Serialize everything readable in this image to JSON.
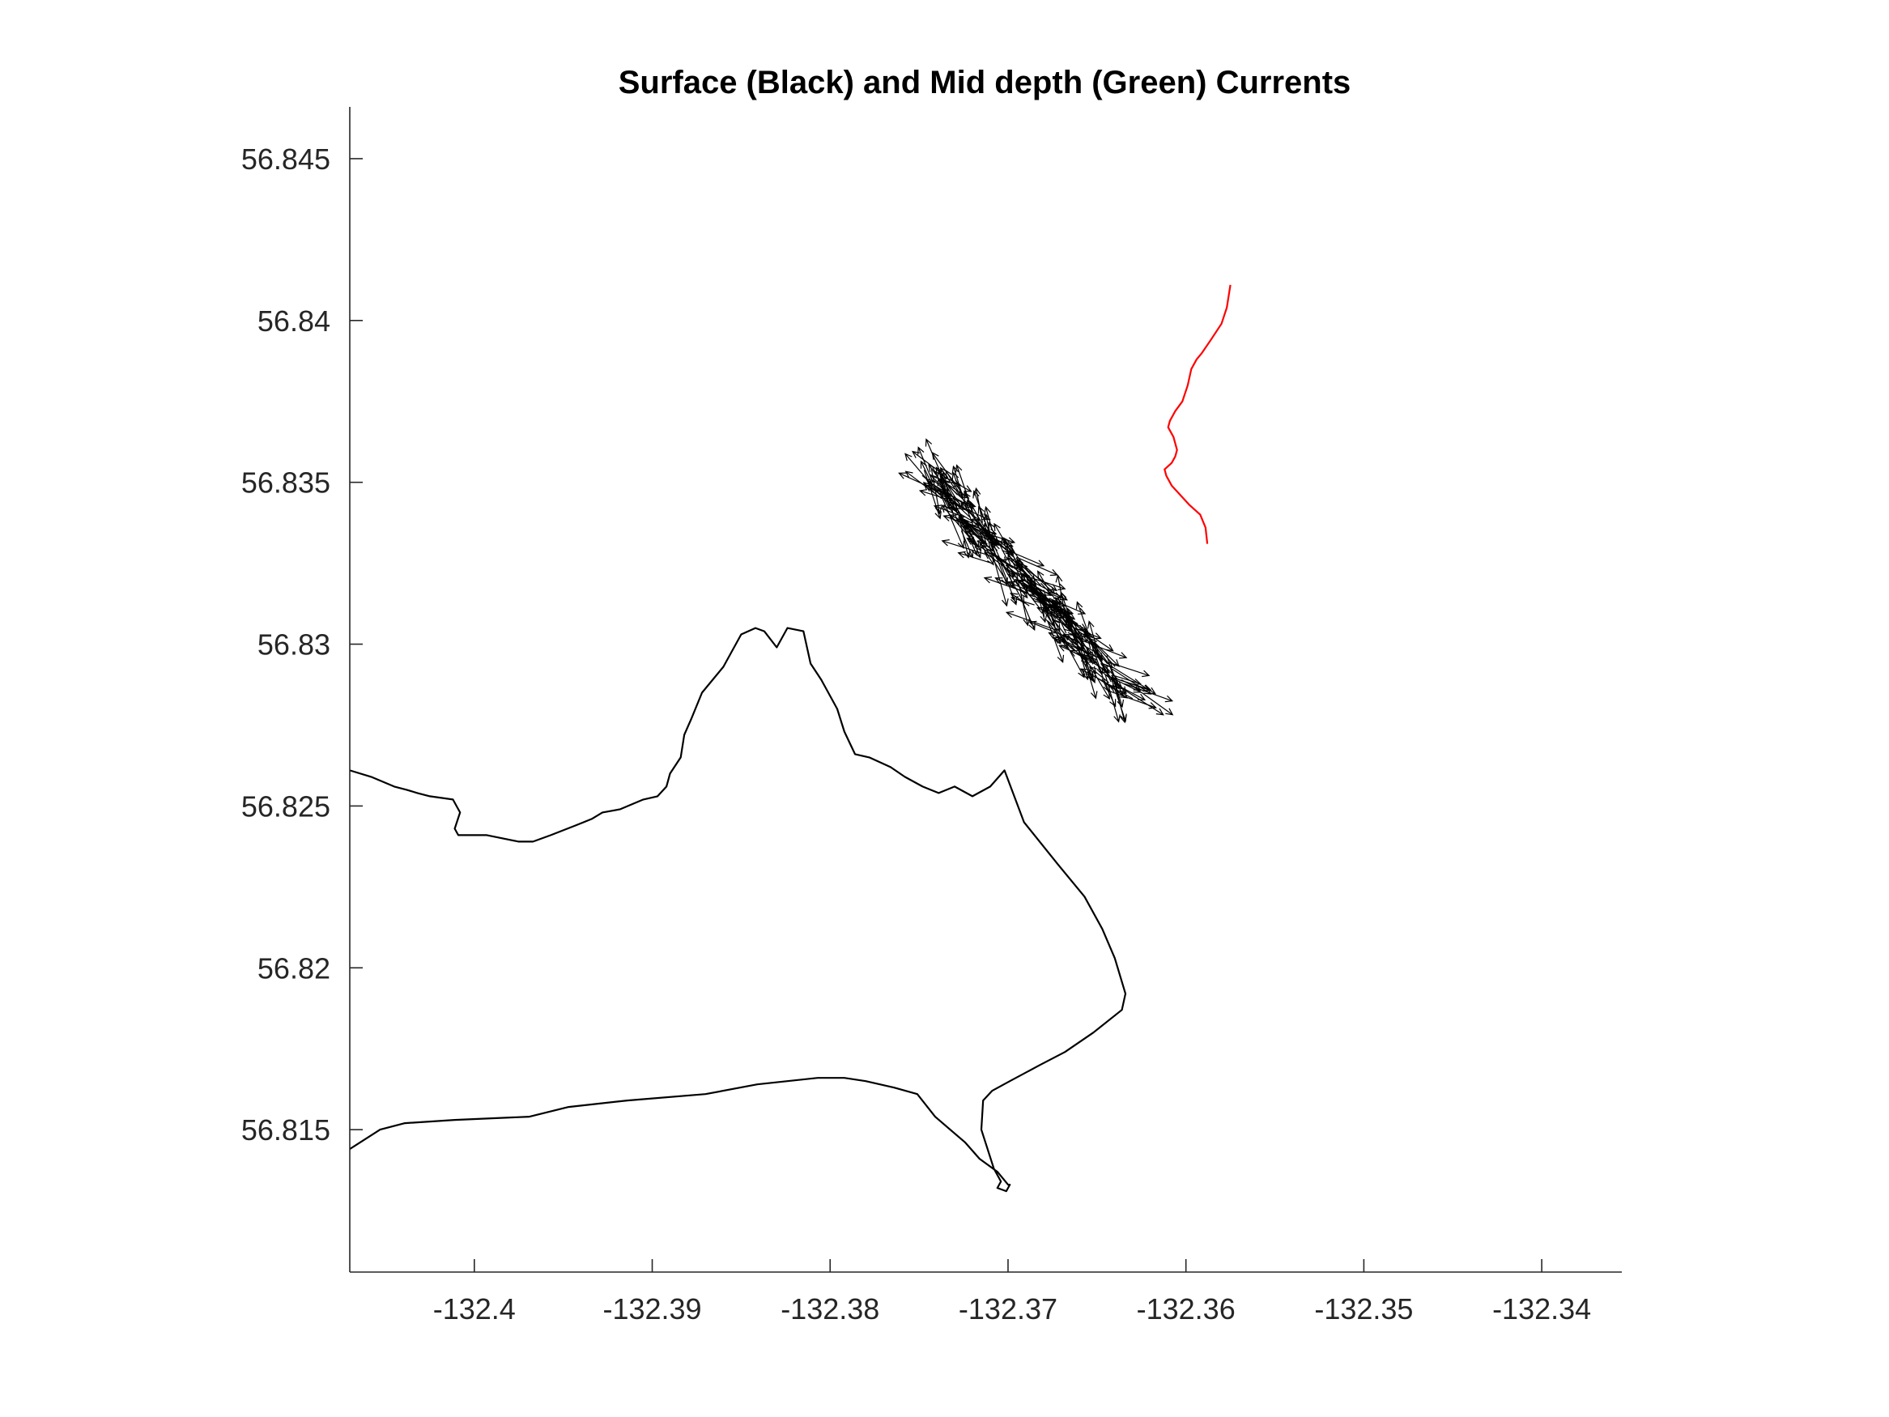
{
  "chart_data": {
    "type": "line",
    "title": "Surface (Black) and Mid depth (Green) Currents",
    "xlabel": "",
    "ylabel": "",
    "xlim": [
      -132.407,
      -132.3355
    ],
    "ylim": [
      56.8106,
      56.8466
    ],
    "xticks": [
      -132.4,
      -132.39,
      -132.38,
      -132.37,
      -132.36,
      -132.35,
      -132.34
    ],
    "yticks": [
      56.815,
      56.82,
      56.825,
      56.83,
      56.835,
      56.84,
      56.845
    ],
    "xtick_labels": [
      "-132.4",
      "-132.39",
      "-132.38",
      "-132.37",
      "-132.36",
      "-132.35",
      "-132.34"
    ],
    "ytick_labels": [
      "56.815",
      "56.82",
      "56.825",
      "56.83",
      "56.835",
      "56.84",
      "56.845"
    ],
    "grid": false,
    "box": "left-bottom axes only",
    "series": [
      {
        "kind": "coastline",
        "color": "#000000",
        "lon": [
          -132.407,
          -132.4058,
          -132.4045,
          -132.4038,
          -132.4032,
          -132.4025,
          -132.4012,
          -132.4008,
          -132.4011,
          -132.4009,
          -132.4003,
          -132.3993,
          -132.3975,
          -132.3967,
          -132.3957,
          -132.3943,
          -132.3934,
          -132.3928,
          -132.3918,
          -132.3905,
          -132.3897,
          -132.3892,
          -132.389,
          -132.3884,
          -132.3882,
          -132.3878,
          -132.3872,
          -132.386,
          -132.385,
          -132.3842,
          -132.3837,
          -132.383,
          -132.3824,
          -132.3815,
          -132.3811,
          -132.3805,
          -132.3796,
          -132.3792,
          -132.3786,
          -132.3778,
          -132.3766,
          -132.3758,
          -132.3748,
          -132.3739,
          -132.373,
          -132.372,
          -132.371,
          -132.3702,
          -132.3691,
          -132.3672,
          -132.3657,
          -132.3647,
          -132.364,
          -132.3634,
          -132.3636,
          -132.3652,
          -132.3668,
          -132.3682,
          -132.3699,
          -132.3709,
          -132.3714,
          -132.3715,
          -132.3708,
          -132.3704,
          -132.3706,
          -132.3701,
          -132.3699,
          -132.37,
          -132.3706,
          -132.3716,
          -132.3724,
          -132.3741,
          -132.3751,
          -132.3764,
          -132.378,
          -132.3792,
          -132.3807,
          -132.3841,
          -132.387,
          -132.3914,
          -132.3947,
          -132.3969,
          -132.4011,
          -132.4039,
          -132.4053,
          -132.407
        ],
        "lat": [
          56.8261,
          56.8259,
          56.8256,
          56.8255,
          56.8254,
          56.8253,
          56.8252,
          56.8248,
          56.8243,
          56.8241,
          56.8241,
          56.8241,
          56.8239,
          56.8239,
          56.8241,
          56.8244,
          56.8246,
          56.8248,
          56.8249,
          56.8252,
          56.8253,
          56.8256,
          56.826,
          56.8265,
          56.8272,
          56.8277,
          56.8285,
          56.8293,
          56.8303,
          56.8305,
          56.8304,
          56.8299,
          56.8305,
          56.8304,
          56.8294,
          56.8289,
          56.828,
          56.8273,
          56.8266,
          56.8265,
          56.8262,
          56.8259,
          56.8256,
          56.8254,
          56.8256,
          56.8253,
          56.8256,
          56.8261,
          56.8245,
          56.8232,
          56.8222,
          56.8212,
          56.8203,
          56.8192,
          56.8187,
          56.818,
          56.8174,
          56.817,
          56.8165,
          56.8162,
          56.8159,
          56.815,
          56.8138,
          56.8134,
          56.8132,
          56.8131,
          56.8133,
          56.8133,
          56.8137,
          56.8141,
          56.8146,
          56.8154,
          56.8161,
          56.8163,
          56.8165,
          56.8166,
          56.8166,
          56.8164,
          56.8161,
          56.8159,
          56.8157,
          56.8154,
          56.8153,
          56.8152,
          56.815,
          56.8144
        ]
      },
      {
        "kind": "track",
        "color": "#ff0000",
        "lon": [
          -132.3575,
          -132.3577,
          -132.358,
          -132.3586,
          -132.3591,
          -132.3594,
          -132.3597,
          -132.3599,
          -132.3602,
          -132.3606,
          -132.3609,
          -132.361,
          -132.3607,
          -132.3605,
          -132.3606,
          -132.3608,
          -132.3612,
          -132.3611,
          -132.3608,
          -132.3603,
          -132.3598,
          -132.3592,
          -132.3589,
          -132.3588
        ],
        "lat": [
          56.8411,
          56.8404,
          56.8399,
          56.8394,
          56.839,
          56.8388,
          56.8385,
          56.838,
          56.8375,
          56.8372,
          56.8369,
          56.8367,
          56.8364,
          56.836,
          56.8358,
          56.8356,
          56.8354,
          56.8352,
          56.8349,
          56.8346,
          56.8343,
          56.834,
          56.8336,
          56.8331
        ]
      },
      {
        "kind": "quiver",
        "color": "#000000",
        "start": [
          -132.3745,
          56.8353
        ],
        "end": [
          -132.3635,
          56.8285
        ]
      }
    ]
  }
}
